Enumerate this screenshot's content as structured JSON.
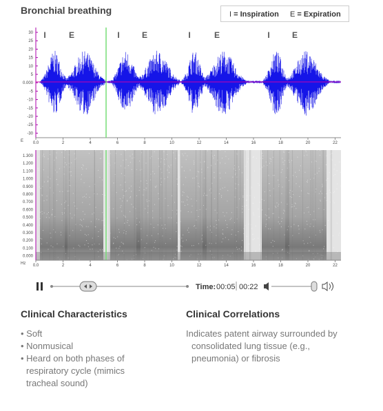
{
  "header": {
    "title": "Bronchial breathing",
    "legend": [
      {
        "key": "I",
        "text": "= Inspiration"
      },
      {
        "key": "E",
        "text": "= Expiration"
      }
    ]
  },
  "waveform": {
    "markers": [
      "I",
      "E",
      "I",
      "E",
      "I",
      "E",
      "I",
      "E"
    ],
    "yticks": [
      "30",
      "25",
      "20",
      "15",
      "10",
      "5",
      "0.000",
      "-5",
      "-10",
      "-15",
      "-20",
      "-25",
      "-30"
    ],
    "unit": "E",
    "xticks": [
      "0.0",
      "2",
      "4",
      "6",
      "8",
      "10",
      "12",
      "14",
      "16",
      "18",
      "20",
      "22"
    ]
  },
  "spectrogram": {
    "yticks": [
      "1.300",
      "1.200",
      "1.100",
      "1.000",
      "0.900",
      "0.800",
      "0.700",
      "0.600",
      "0.500",
      "0.400",
      "0.300",
      "0.200",
      "0.100",
      "0.000"
    ],
    "unit": "Hz",
    "xticks": [
      "0.0",
      "2",
      "4",
      "6",
      "8",
      "10",
      "12",
      "14",
      "16",
      "18",
      "20",
      "22"
    ]
  },
  "player": {
    "time_label": "Time:",
    "current": "00:05",
    "total": "00:22"
  },
  "sections": [
    {
      "title": "Clinical Characteristics",
      "items": [
        "Soft",
        "Nonmusical",
        "Heard on both phases of respiratory cycle (mimics tracheal sound)"
      ]
    },
    {
      "title": "Clinical Correlations",
      "text": "Indicates patent airway surrounded by consolidated lung tissue (e.g., pneumonia) or fibrosis"
    }
  ]
}
